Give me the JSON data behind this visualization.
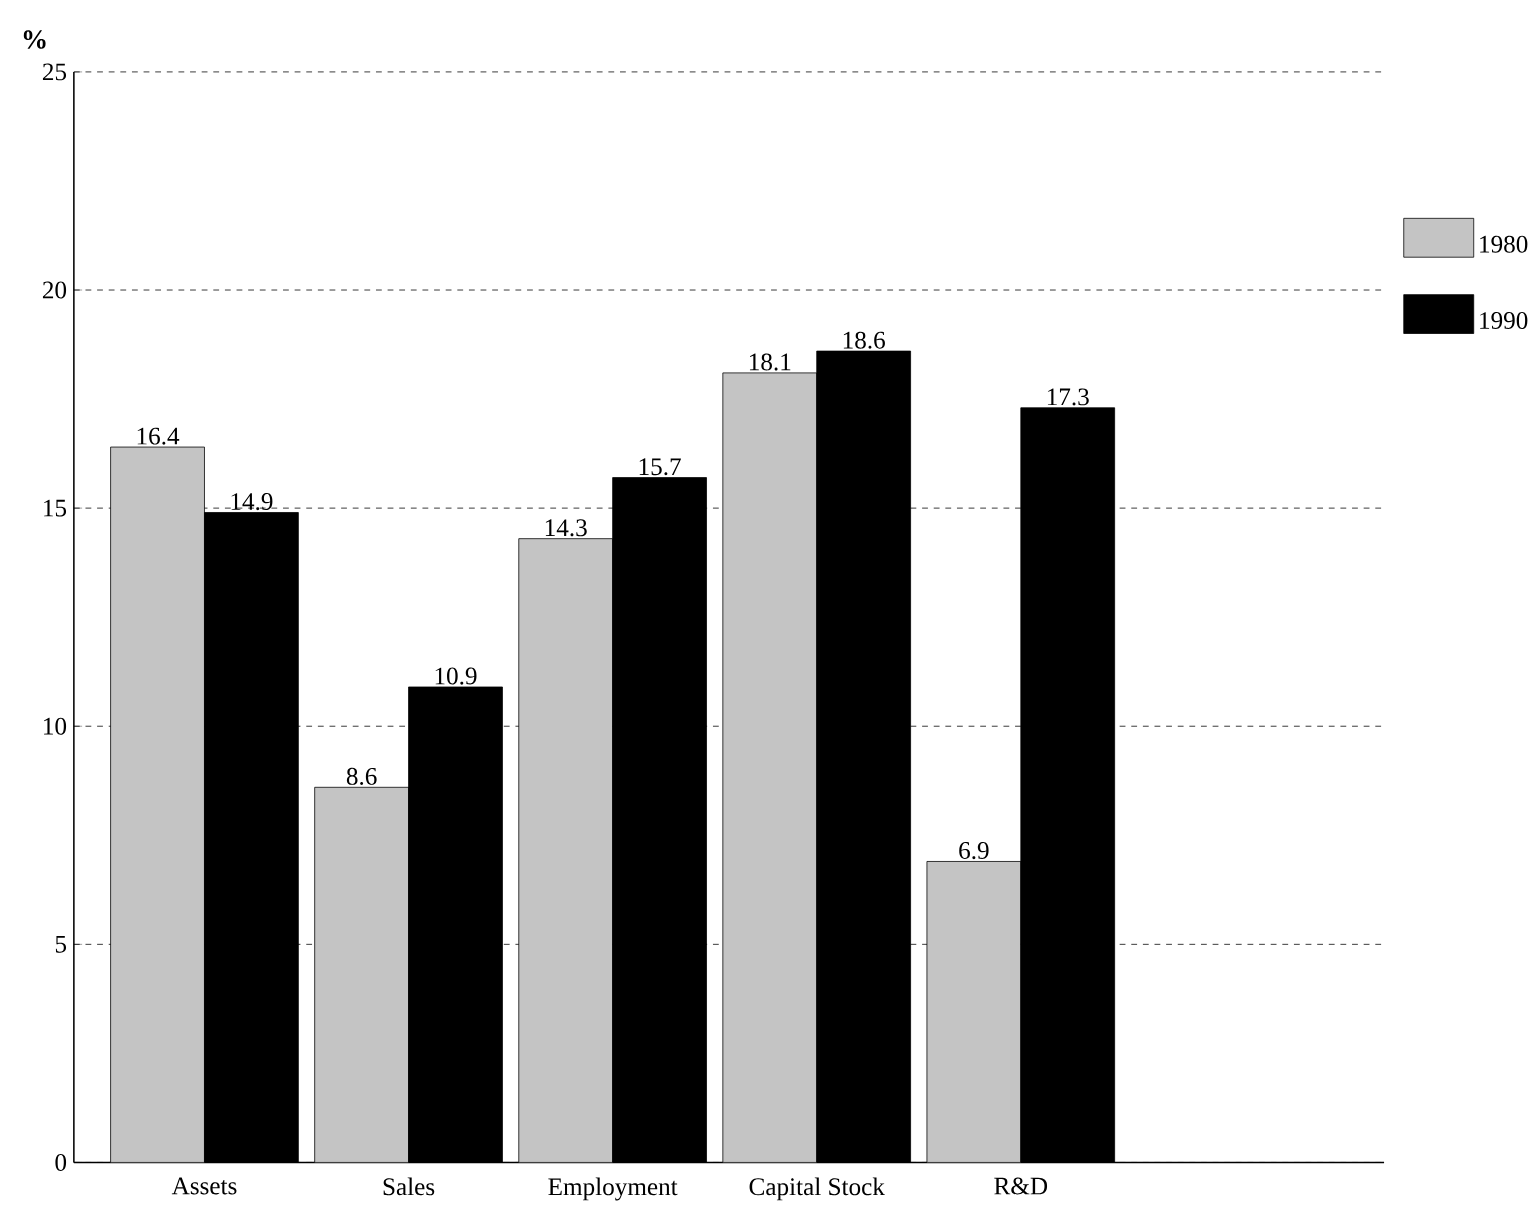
{
  "chart_data": {
    "type": "bar",
    "ylabel": "%",
    "categories": [
      "Assets",
      "Sales",
      "Employment",
      "Capital Stock",
      "R&D"
    ],
    "series": [
      {
        "name": "1980",
        "color": "#c4c4c4",
        "values": [
          16.4,
          8.6,
          14.3,
          18.1,
          6.9
        ]
      },
      {
        "name": "1990",
        "color": "#000000",
        "values": [
          14.9,
          10.9,
          15.7,
          18.6,
          17.3
        ]
      }
    ],
    "ylim": [
      0,
      25
    ],
    "yticks": [
      0,
      5,
      10,
      15,
      20,
      25
    ],
    "grid": "y",
    "legend": "right",
    "data_labels": true
  }
}
